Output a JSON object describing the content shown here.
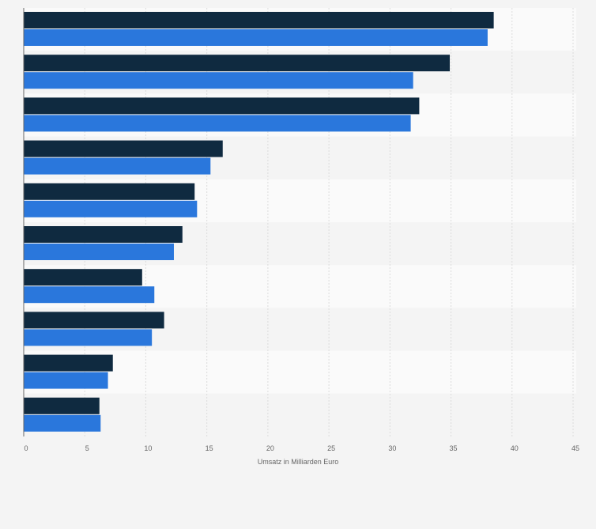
{
  "chart_data": {
    "type": "bar",
    "orientation": "horizontal",
    "categories": [
      "",
      "",
      "",
      "",
      "",
      "",
      "",
      "",
      "",
      ""
    ],
    "series": [
      {
        "color": "#0f2a40",
        "values": [
          38.5,
          34.9,
          32.4,
          16.3,
          14.0,
          13.0,
          9.7,
          11.5,
          7.3,
          6.2
        ]
      },
      {
        "color": "#2a77dc",
        "values": [
          38.0,
          31.9,
          31.7,
          15.3,
          14.2,
          12.3,
          10.7,
          10.5,
          6.9,
          6.3
        ]
      }
    ],
    "xlabel": "Umsatz in Milliarden Euro",
    "xlim": [
      0,
      45
    ],
    "xticks": [
      "0",
      "5",
      "10",
      "15",
      "20",
      "25",
      "30",
      "35",
      "40",
      "45"
    ],
    "grid": true,
    "legend": "none"
  }
}
